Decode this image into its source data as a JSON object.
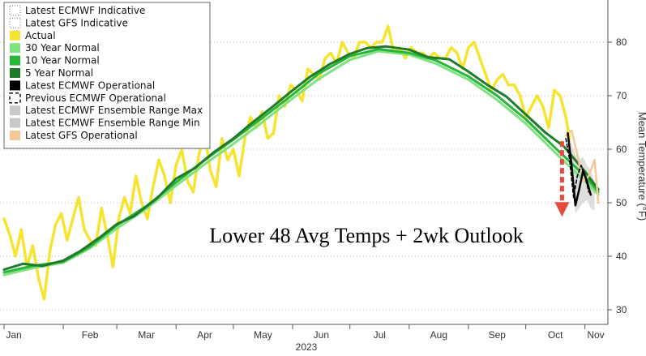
{
  "chart_data": {
    "type": "line",
    "ylabel": "Mean Temperature (°F)",
    "ylim": [
      28,
      88
    ],
    "y_ticks": [
      "30",
      "40",
      "50",
      "60",
      "70",
      "80"
    ],
    "x_ticks": [
      "Jan",
      "Feb",
      "Mar",
      "Apr",
      "May",
      "Jun",
      "Jul",
      "Aug",
      "Sep",
      "Oct",
      "Nov"
    ],
    "x_year_label": "2023",
    "annotation": "Lower 48 Avg Temps + 2wk Outlook",
    "grid": "horizontal-dotted",
    "legend_position": "top-left",
    "colors": {
      "actual": "#f5e431",
      "normal30": "#7fe27f",
      "normal10": "#27b53a",
      "normal5": "#1f7a2b",
      "ecmwf_op": "#000000",
      "gfs_op": "#f4c997",
      "range": "#c8c8c8",
      "arrow": "#e64a3c"
    },
    "legend": [
      {
        "label": "Latest ECMWF Indicative",
        "style": "dotted-box"
      },
      {
        "label": "Latest GFS Indicative",
        "style": "dotted-box"
      },
      {
        "label": "Actual",
        "color": "#f5e431"
      },
      {
        "label": "30 Year Normal",
        "color": "#7fe27f"
      },
      {
        "label": "10 Year Normal",
        "color": "#27b53a"
      },
      {
        "label": "5 Year Normal",
        "color": "#1f7a2b"
      },
      {
        "label": "Latest ECMWF Operational",
        "color": "#000000"
      },
      {
        "label": "Previous ECMWF Operational",
        "style": "dashed-box"
      },
      {
        "label": "Latest ECMWF Ensemble Range Max",
        "color": "#c8c8c8"
      },
      {
        "label": "Latest ECMWF Ensemble Range Min",
        "color": "#c8c8c8"
      },
      {
        "label": "Latest GFS Operational",
        "color": "#f4c997"
      }
    ],
    "series": [
      {
        "name": "30 Year Normal",
        "key": "normal30",
        "x": [
          0,
          15,
          31,
          45,
          59,
          75,
          90,
          105,
          120,
          135,
          151,
          165,
          181,
          196,
          212,
          226,
          243,
          258,
          273,
          288,
          304,
          311
        ],
        "y": [
          36.5,
          37.8,
          38.8,
          41.5,
          45.2,
          49.0,
          53.2,
          57.2,
          61.0,
          65.0,
          69.5,
          73.2,
          76.7,
          78.3,
          77.7,
          76.0,
          73.0,
          69.2,
          64.8,
          59.5,
          54.0,
          51.5
        ]
      },
      {
        "name": "10 Year Normal",
        "key": "normal10",
        "x": [
          0,
          15,
          31,
          45,
          59,
          75,
          90,
          105,
          120,
          135,
          151,
          165,
          181,
          196,
          212,
          226,
          243,
          258,
          273,
          288,
          304,
          311
        ],
        "y": [
          37.0,
          38.2,
          39.0,
          41.8,
          45.8,
          49.5,
          53.8,
          58.0,
          61.8,
          65.8,
          70.2,
          74.2,
          77.4,
          78.7,
          78.0,
          76.6,
          73.6,
          70.0,
          65.6,
          60.4,
          55.0,
          52.0
        ]
      },
      {
        "name": "5 Year Normal",
        "key": "normal5",
        "x": [
          0,
          10,
          20,
          31,
          40,
          50,
          59,
          68,
          80,
          90,
          100,
          110,
          120,
          130,
          140,
          151,
          160,
          170,
          181,
          190,
          200,
          212,
          222,
          233,
          243,
          253,
          263,
          273,
          283,
          293,
          304,
          311
        ],
        "y": [
          37.5,
          38.6,
          38.2,
          39.2,
          41.0,
          43.5,
          46.0,
          47.5,
          50.8,
          54.5,
          56.5,
          59.5,
          62.0,
          65.0,
          67.8,
          71.0,
          73.5,
          75.8,
          77.8,
          78.9,
          79.2,
          78.6,
          77.2,
          76.8,
          74.5,
          72.0,
          69.8,
          66.5,
          63.2,
          60.5,
          55.8,
          52.5
        ]
      },
      {
        "name": "Actual",
        "key": "actual",
        "x": [
          0,
          3,
          6,
          9,
          12,
          15,
          18,
          21,
          24,
          27,
          30,
          33,
          36,
          39,
          42,
          45,
          48,
          51,
          54,
          57,
          60,
          63,
          66,
          69,
          72,
          75,
          78,
          81,
          84,
          87,
          90,
          93,
          96,
          99,
          102,
          105,
          108,
          111,
          114,
          117,
          120,
          123,
          126,
          129,
          132,
          135,
          138,
          141,
          144,
          147,
          150,
          153,
          156,
          159,
          162,
          165,
          168,
          171,
          174,
          177,
          180,
          183,
          186,
          189,
          192,
          195,
          198,
          201,
          204,
          207,
          210,
          213,
          216,
          219,
          222,
          225,
          228,
          231,
          234,
          237,
          240,
          243,
          246,
          249,
          252,
          255,
          258,
          261,
          264,
          267,
          270,
          273,
          276,
          279,
          282,
          285,
          288,
          291,
          294,
          296
        ],
        "y": [
          47,
          44,
          40,
          45,
          38,
          42,
          36,
          32,
          41,
          46,
          48,
          43,
          47,
          51,
          45,
          43,
          42,
          49,
          44,
          38,
          47,
          51,
          48,
          55,
          50,
          47,
          53,
          58,
          55,
          50,
          57,
          60,
          54,
          52,
          59,
          63,
          56,
          53,
          62,
          58,
          60,
          55,
          62,
          66,
          64,
          67,
          62,
          63,
          70,
          68,
          72,
          71,
          69,
          75,
          74,
          73,
          77,
          78,
          76,
          80,
          78,
          77,
          80,
          80,
          79,
          80,
          80,
          83,
          78,
          79,
          77,
          79,
          78,
          78,
          77,
          78,
          77,
          77,
          79,
          78,
          75,
          79,
          80,
          77,
          74,
          71,
          73,
          74,
          72,
          72,
          70,
          66,
          68,
          70,
          68,
          64,
          71,
          70,
          66,
          62
        ]
      },
      {
        "name": "Latest ECMWF Operational",
        "key": "ecmwf_op",
        "x": [
          295,
          297,
          299,
          301,
          303,
          305,
          307
        ],
        "y": [
          63.0,
          57.0,
          49.5,
          52.5,
          56.0,
          54.0,
          51.5
        ]
      },
      {
        "name": "Previous ECMWF Operational",
        "key": "ecmwf_prev",
        "x": [
          294,
          296,
          298,
          300,
          302,
          304,
          306
        ],
        "y": [
          62.0,
          58.0,
          51.0,
          55.0,
          57.0,
          55.0,
          52.0
        ]
      },
      {
        "name": "Latest GFS Operational",
        "key": "gfs_op",
        "x": [
          294,
          297,
          300,
          303,
          306,
          309,
          311
        ],
        "y": [
          62.5,
          63.5,
          59.0,
          54.0,
          55.0,
          58.0,
          50.0
        ]
      }
    ],
    "ensemble_range": {
      "x": [
        295,
        297,
        299,
        301,
        303,
        305,
        307,
        309
      ],
      "max": [
        64.0,
        61.0,
        59.0,
        58.0,
        58.5,
        57.0,
        56.0,
        54.0
      ],
      "min": [
        61.0,
        55.0,
        48.0,
        49.0,
        50.0,
        50.5,
        49.0,
        48.5
      ]
    },
    "arrow": {
      "from_x": 292,
      "from_y": 61.5,
      "to_x": 292,
      "to_y": 48.0
    }
  }
}
